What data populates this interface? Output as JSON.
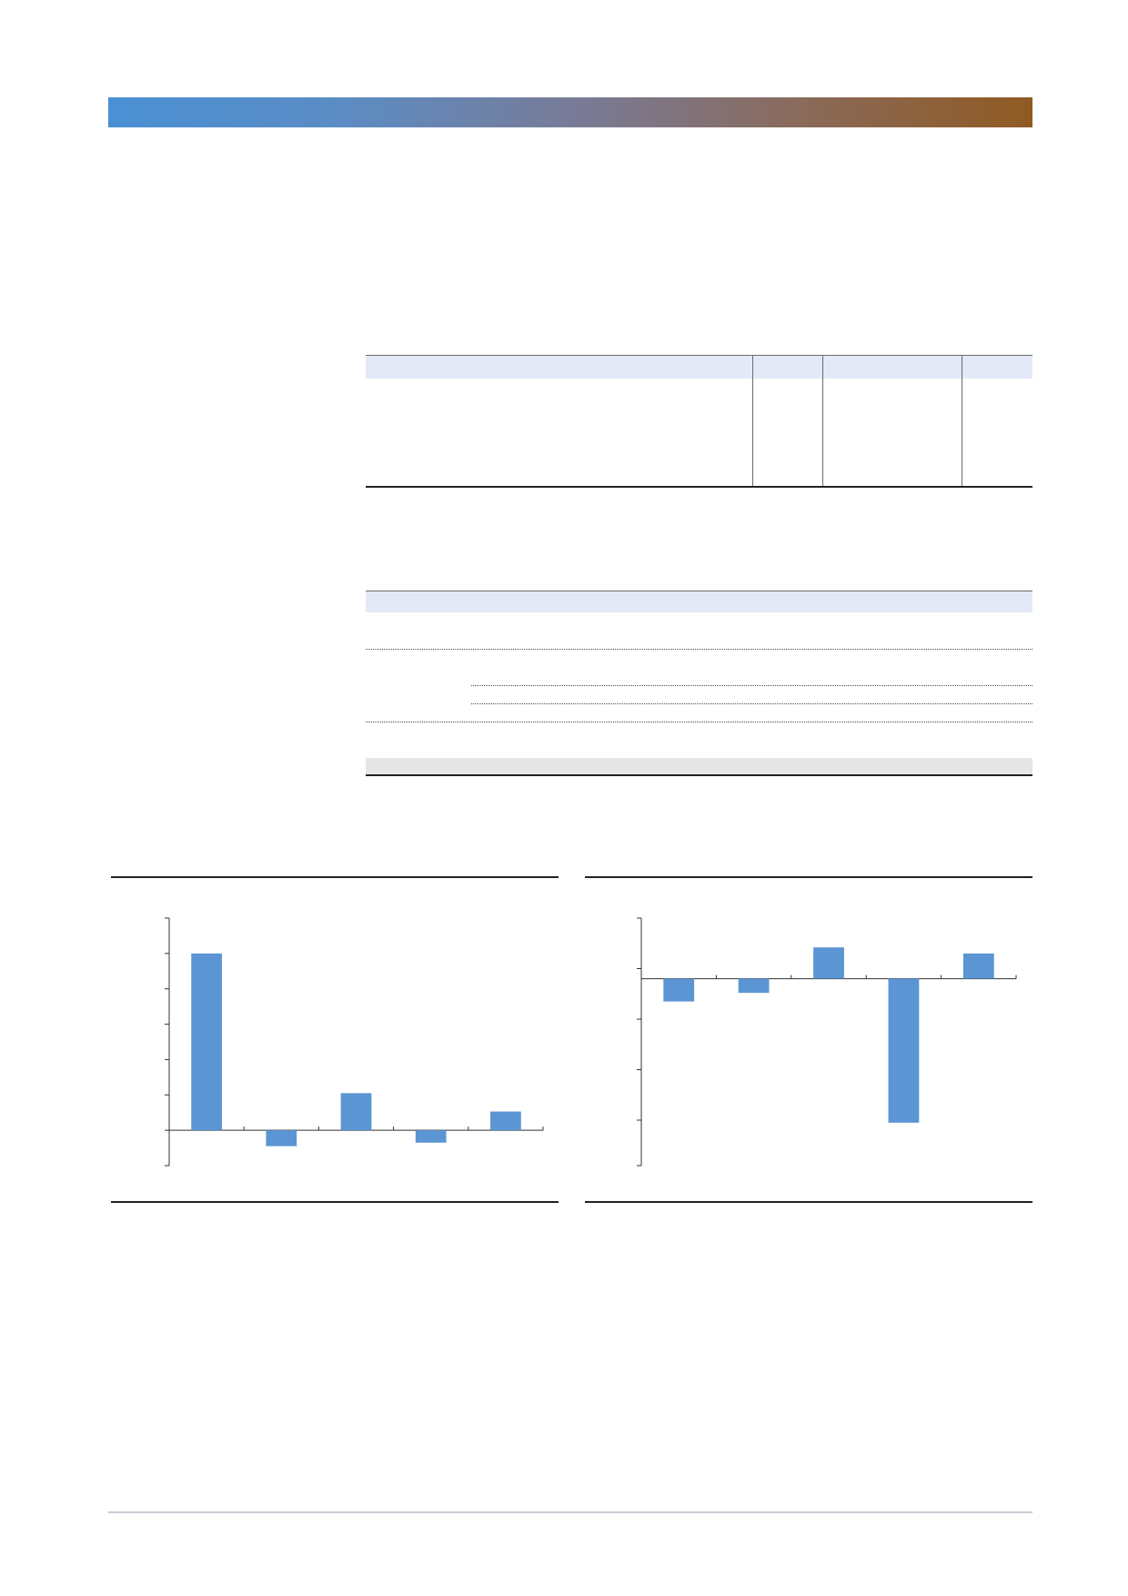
{
  "document": {
    "title": "",
    "subtitle": "",
    "header_colors": {
      "start": "#4a90d4",
      "end": "#905a22"
    }
  },
  "table1": {
    "headers": [
      "",
      "",
      "",
      ""
    ],
    "rows": [
      [
        "",
        "",
        "",
        ""
      ]
    ]
  },
  "table2": {
    "headers": [
      "",
      "",
      "",
      "",
      "",
      "",
      "",
      ""
    ],
    "rows": [],
    "total_fill": "#e6e6e6"
  },
  "chart_data": [
    {
      "type": "bar",
      "title": "",
      "xlabel": "",
      "ylabel": "",
      "categories": [
        "",
        "",
        "",
        "",
        ""
      ],
      "values": [
        5,
        -0.45,
        1.05,
        -0.35,
        0.53
      ],
      "ylim": [
        -1,
        6
      ],
      "yticks": [
        -1,
        0,
        1,
        2,
        3,
        4,
        5,
        6
      ],
      "grid": false,
      "bar_color": "#5b95d3"
    },
    {
      "type": "bar",
      "title": "",
      "xlabel": "",
      "ylabel": "",
      "categories": [
        "",
        "",
        "",
        "",
        ""
      ],
      "values": [
        -0.45,
        -0.28,
        0.62,
        -2.85,
        0.5
      ],
      "ylim": [
        -3.7,
        1.2
      ],
      "yticks": [
        -3.7,
        -2.8,
        -1.8,
        -0.8,
        0.2,
        1.2
      ],
      "grid": false,
      "bar_color": "#5b95d3"
    }
  ]
}
